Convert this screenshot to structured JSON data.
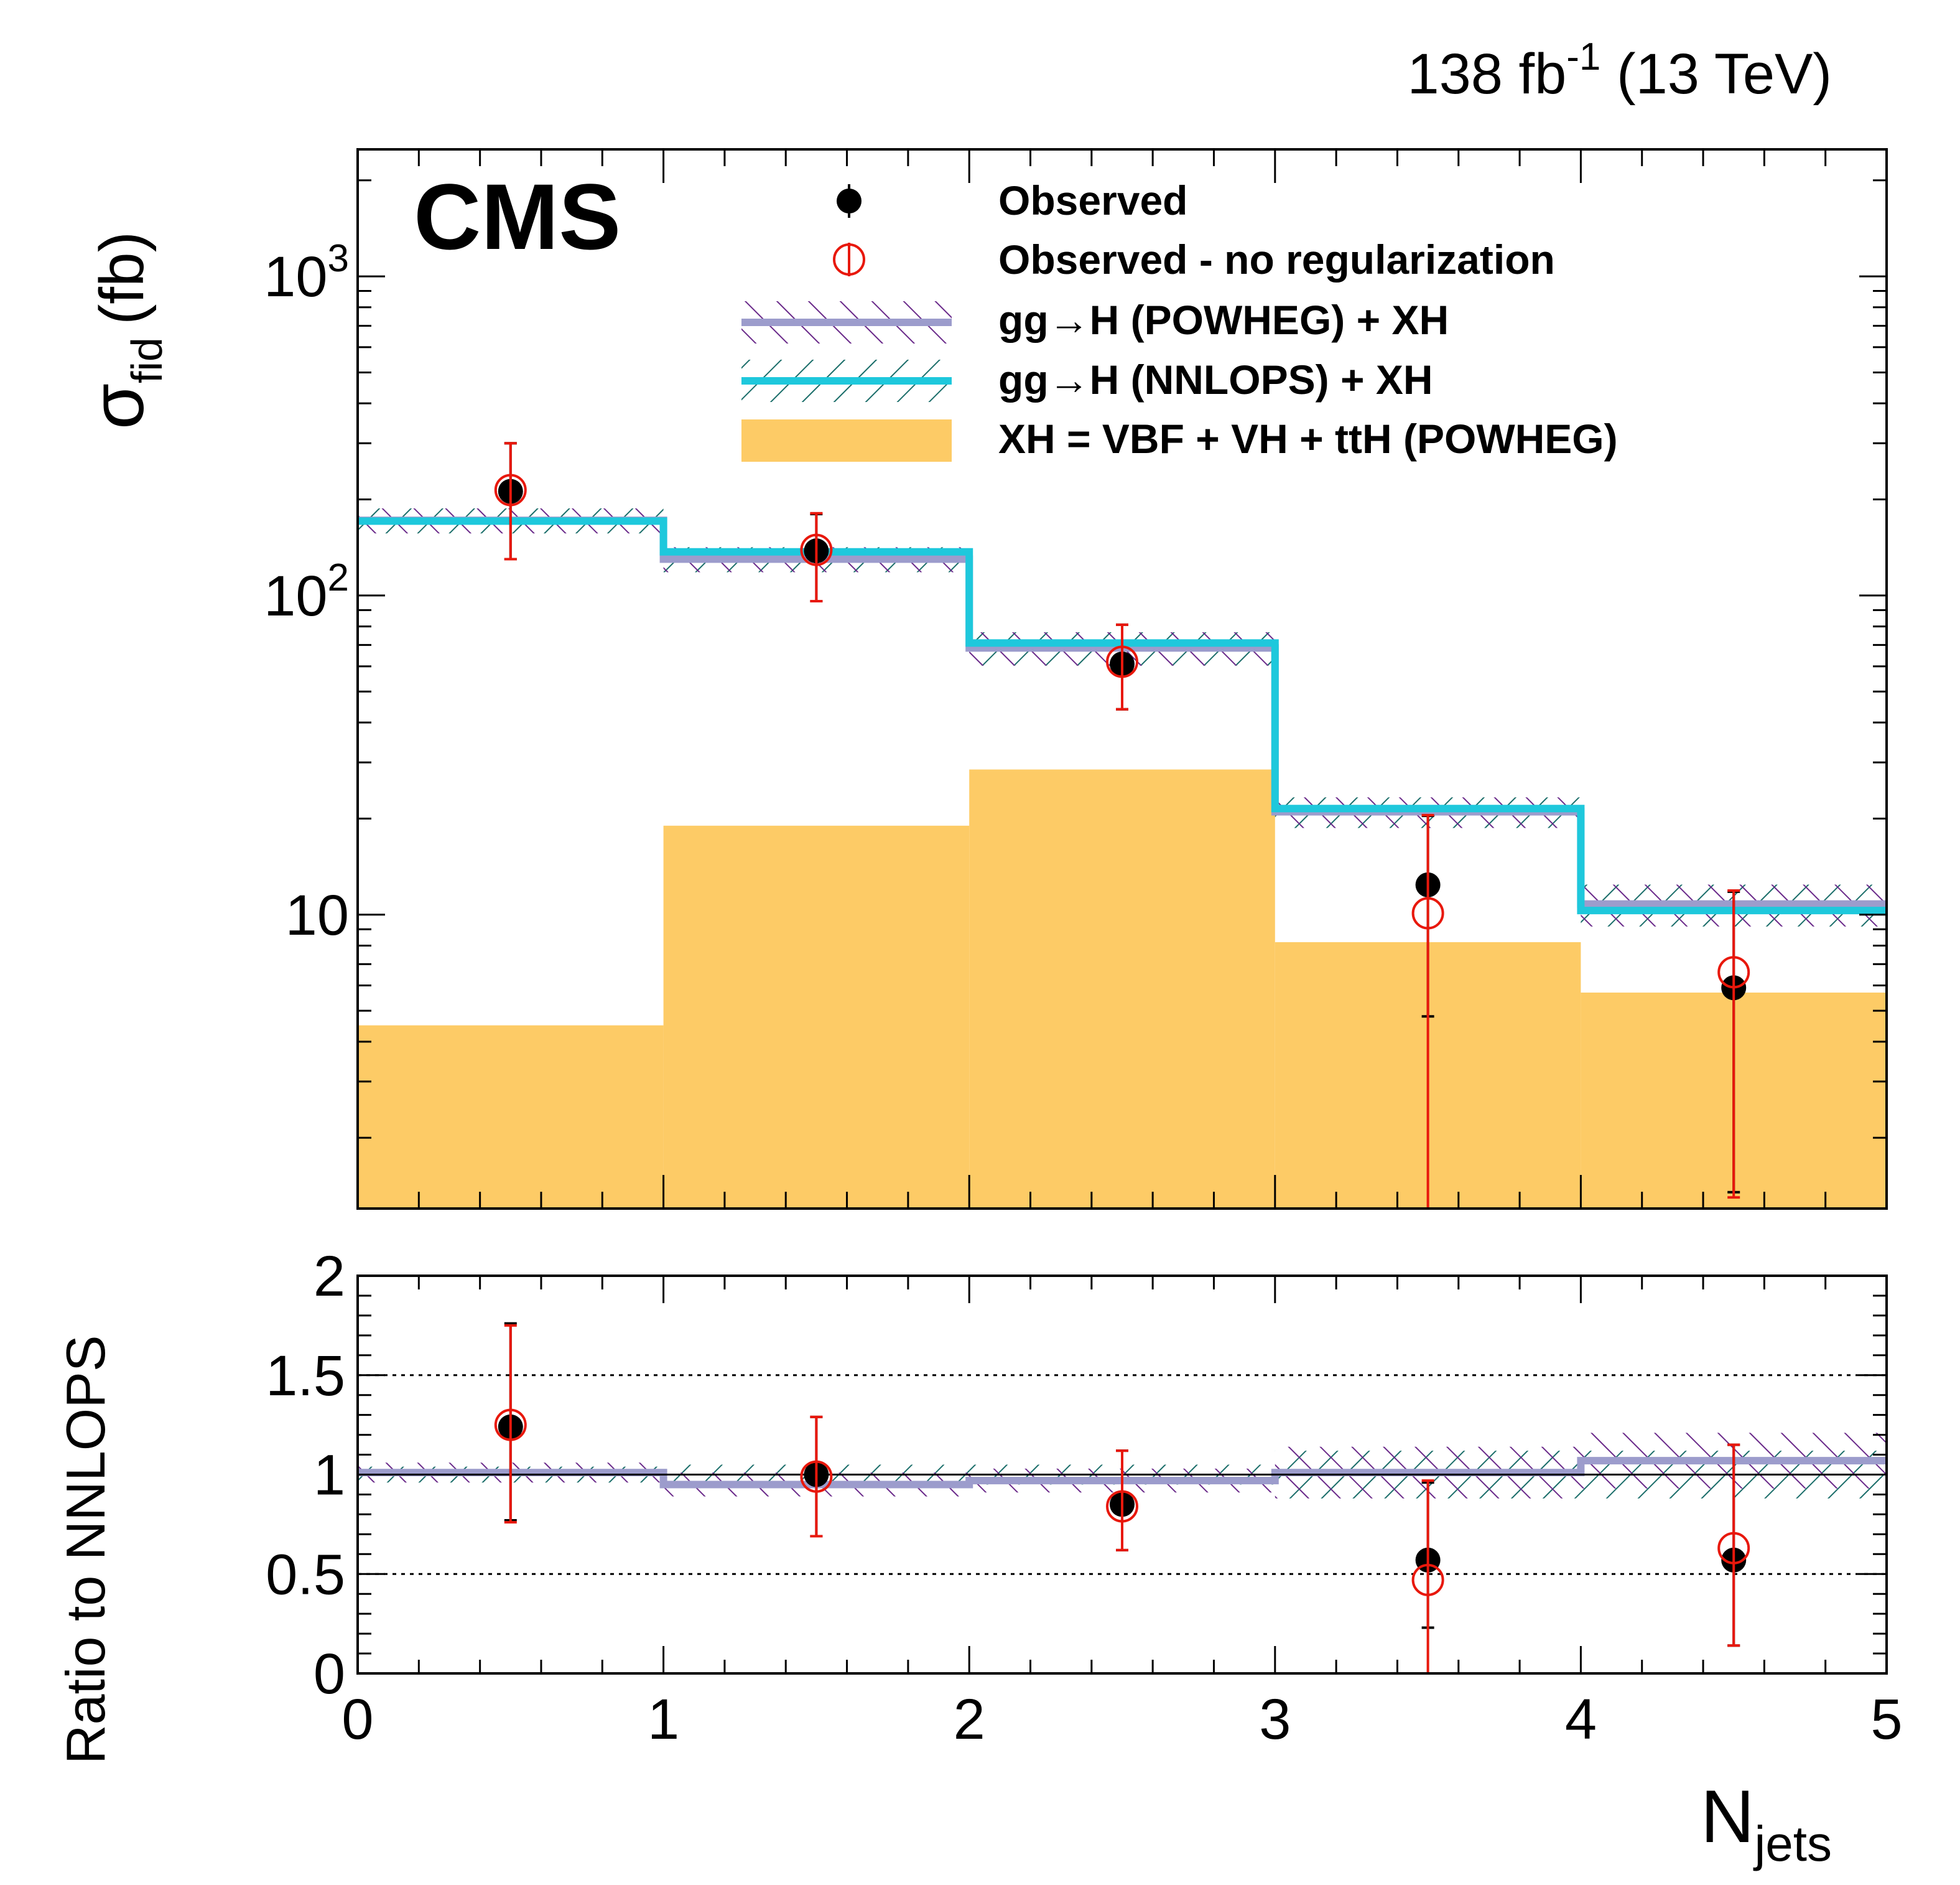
{
  "header": {
    "experiment": "CMS",
    "lumi_value": "138 fb",
    "lumi_exp": "-1",
    "lumi_energy": " (13 TeV)"
  },
  "legend": {
    "observed": "Observed",
    "observed_noreg": "Observed - no regularization",
    "powheg": "gg→H (POWHEG) + XH",
    "nnlops": "gg→H (NNLOPS) + XH",
    "xh": "XH = VBF + VH + ttH (POWHEG)"
  },
  "colors": {
    "xh_fill": "#fdcb66",
    "nnlops": "#1ec8dc",
    "powheg": "#9c9ccc",
    "powheg_hatch": "#6a2a8a",
    "nnlops_hatch": "#1b6e6a",
    "noreg": "#e8180c",
    "observed": "#000000"
  },
  "chart_data": {
    "type": "histogram",
    "xlabel_main": "N",
    "xlabel_sub": "jets",
    "ylabel_main": "σ",
    "ylabel_sub": "fid",
    "ylabel_unit": "(fb)",
    "ratio_ylabel": "Ratio to NNLOPS",
    "x_edges": [
      0,
      1,
      2,
      3,
      4,
      5
    ],
    "x_ticks": [
      "0",
      "1",
      "2",
      "3",
      "4",
      "5"
    ],
    "top_yscale": "log",
    "top_ylim": [
      1.2,
      2500
    ],
    "top_yticks": [
      {
        "value": 10,
        "mantissa": "10",
        "exp": ""
      },
      {
        "value": 100,
        "mantissa": "10",
        "exp": "2"
      },
      {
        "value": 1000,
        "mantissa": "10",
        "exp": "3"
      }
    ],
    "ratio_ylim": [
      0,
      2
    ],
    "ratio_yticks": [
      "0",
      "0.5",
      "1",
      "1.5",
      "2"
    ],
    "ratio_gridlines": [
      0.5,
      1.0,
      1.5
    ],
    "series": [
      {
        "name": "XH = VBF + VH + ttH (POWHEG)",
        "values": [
          4.5,
          19,
          28.5,
          8.2,
          5.7
        ]
      },
      {
        "name": "gg→H (NNLOPS) + XH",
        "values": [
          171,
          137,
          71,
          21.5,
          10.3
        ]
      },
      {
        "name": "gg→H (POWHEG) + XH",
        "values": [
          172,
          130,
          68.5,
          21,
          10.8
        ],
        "unc_rel": [
          0.09,
          0.09,
          0.12,
          0.11,
          0.15
        ]
      },
      {
        "name": "Observed",
        "x": [
          0.5,
          1.5,
          2.5,
          3.5,
          4.5
        ],
        "values": [
          212,
          138,
          61,
          12.4,
          5.9
        ],
        "err_low": [
          82,
          42,
          17,
          7.6,
          4.55
        ],
        "err_high": [
          88,
          42,
          20,
          8.0,
          5.9
        ]
      },
      {
        "name": "Observed - no regularization",
        "x": [
          0.5,
          1.5,
          2.5,
          3.5,
          4.5
        ],
        "values": [
          214,
          139,
          62,
          10.1,
          6.6
        ],
        "err_low": [
          84,
          43,
          18,
          10.1,
          5.3
        ],
        "err_high": [
          86,
          42,
          19,
          10.4,
          5.3
        ]
      }
    ],
    "ratio_series": [
      {
        "name": "gg→H (POWHEG) + XH / NNLOPS",
        "values": [
          1.01,
          0.95,
          0.97,
          1.01,
          1.07
        ],
        "unc_rel": [
          0.05,
          0.06,
          0.06,
          0.13,
          0.14
        ]
      },
      {
        "name": "gg→H (NNLOPS) + XH / NNLOPS",
        "values": [
          1.0,
          1.0,
          1.0,
          1.0,
          1.0
        ],
        "unc_rel": [
          0.04,
          0.05,
          0.05,
          0.12,
          0.12
        ]
      },
      {
        "name": "Observed",
        "x": [
          0.5,
          1.5,
          2.5,
          3.5,
          4.5
        ],
        "values": [
          1.24,
          1.0,
          0.85,
          0.57,
          0.57
        ],
        "err_low": [
          0.47,
          0.31,
          0.23,
          0.34,
          0.43
        ],
        "err_high": [
          0.52,
          0.29,
          0.27,
          0.39,
          0.58
        ]
      },
      {
        "name": "Observed - no regularization",
        "x": [
          0.5,
          1.5,
          2.5,
          3.5,
          4.5
        ],
        "values": [
          1.25,
          0.99,
          0.84,
          0.47,
          0.63
        ],
        "err_low": [
          0.49,
          0.3,
          0.22,
          0.47,
          0.49
        ],
        "err_high": [
          0.5,
          0.3,
          0.28,
          0.5,
          0.52
        ]
      }
    ]
  }
}
